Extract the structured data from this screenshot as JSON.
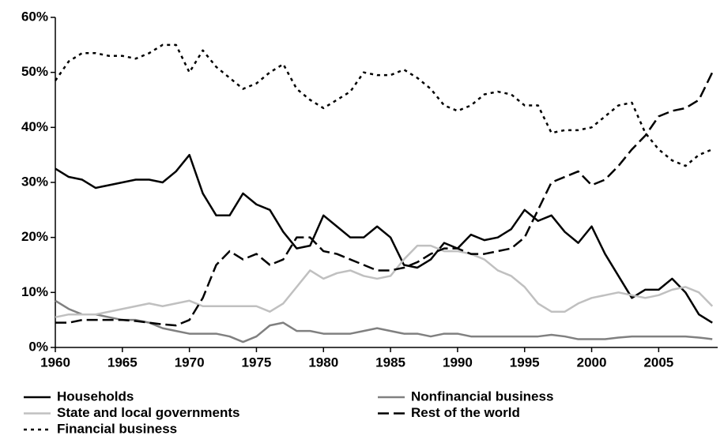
{
  "chart_data": {
    "type": "line",
    "x": [
      1960,
      1961,
      1962,
      1963,
      1964,
      1965,
      1966,
      1967,
      1968,
      1969,
      1970,
      1971,
      1972,
      1973,
      1974,
      1975,
      1976,
      1977,
      1978,
      1979,
      1980,
      1981,
      1982,
      1983,
      1984,
      1985,
      1986,
      1987,
      1988,
      1989,
      1990,
      1991,
      1992,
      1993,
      1994,
      1995,
      1996,
      1997,
      1998,
      1999,
      2000,
      2001,
      2002,
      2003,
      2004,
      2005,
      2006,
      2007,
      2008,
      2009
    ],
    "xlim": [
      1960,
      2009.4
    ],
    "xticks": [
      1960,
      1965,
      1970,
      1975,
      1980,
      1985,
      1990,
      1995,
      2000,
      2005
    ],
    "ylim": [
      0,
      60
    ],
    "yticks": [
      {
        "value": 0,
        "label": "0%"
      },
      {
        "value": 10,
        "label": "10%"
      },
      {
        "value": 20,
        "label": "20%"
      },
      {
        "value": 30,
        "label": "30%"
      },
      {
        "value": 40,
        "label": "40%"
      },
      {
        "value": 50,
        "label": "50%"
      },
      {
        "value": 60,
        "label": "60%"
      }
    ],
    "series": [
      {
        "name": "Households",
        "color": "#000000",
        "dash": "solid",
        "values": [
          32.5,
          31,
          30.5,
          29,
          29.5,
          30,
          30.5,
          30.5,
          30,
          32,
          35,
          28,
          24,
          24,
          28,
          26,
          25,
          21,
          18,
          18.5,
          24,
          22,
          20,
          20,
          22,
          20,
          15,
          14.5,
          16,
          19,
          18,
          20.5,
          19.5,
          20,
          21.5,
          25,
          23,
          24,
          21,
          19,
          22,
          17,
          13,
          9,
          10.5,
          10.5,
          12.5,
          10,
          6,
          4.5
        ]
      },
      {
        "name": "Nonfinancial business",
        "color": "#808080",
        "dash": "solid",
        "values": [
          8.5,
          7,
          6,
          6,
          5.5,
          5,
          5,
          4.5,
          3.5,
          3,
          2.5,
          2.5,
          2.5,
          2,
          1,
          2,
          4,
          4.5,
          3,
          3,
          2.5,
          2.5,
          2.5,
          3,
          3.5,
          3,
          2.5,
          2.5,
          2,
          2.5,
          2.5,
          2,
          2,
          2,
          2,
          2,
          2,
          2.3,
          2,
          1.5,
          1.5,
          1.5,
          1.8,
          2,
          2,
          2,
          2,
          2,
          1.8,
          1.5
        ]
      },
      {
        "name": "State and local governments",
        "color": "#c0c0c0",
        "dash": "solid",
        "values": [
          5.5,
          6,
          6,
          6,
          6.5,
          7,
          7.5,
          8,
          7.5,
          8,
          8.5,
          7.5,
          7.5,
          7.5,
          7.5,
          7.5,
          6.5,
          8,
          11,
          14,
          12.5,
          13.5,
          14,
          13,
          12.5,
          13,
          16,
          18.5,
          18.5,
          17.5,
          17.5,
          17,
          16,
          14,
          13,
          11,
          8,
          6.5,
          6.5,
          8,
          9,
          9.5,
          10,
          9.5,
          9,
          9.5,
          10.5,
          11,
          10,
          7.5
        ]
      },
      {
        "name": "Rest of the world",
        "color": "#000000",
        "dash": "dashed",
        "values": [
          4.5,
          4.5,
          5,
          5,
          5,
          5,
          4.8,
          4.5,
          4.2,
          4,
          5,
          9,
          15,
          17.5,
          16,
          17,
          15,
          16,
          20,
          20,
          17.5,
          17,
          16,
          15,
          14,
          14,
          14.5,
          15.5,
          17,
          18,
          18,
          17,
          17,
          17.5,
          18,
          20,
          25,
          30,
          31,
          32,
          29.5,
          30.5,
          33,
          36,
          38.5,
          42,
          43,
          43.5,
          45,
          50
        ]
      },
      {
        "name": "Financial business",
        "color": "#000000",
        "dash": "dotted",
        "values": [
          48.5,
          52,
          53.5,
          53.5,
          53,
          53,
          52.5,
          53.5,
          55,
          55,
          50,
          54,
          51,
          49,
          47,
          48,
          50,
          51.5,
          47,
          45,
          43.5,
          45,
          46.5,
          50,
          49.5,
          49.5,
          50.5,
          49,
          47,
          44,
          43,
          44,
          46,
          46.5,
          46,
          44,
          44,
          39,
          39.5,
          39.5,
          40,
          42,
          44,
          44.5,
          39,
          36,
          34,
          33,
          35,
          36
        ]
      }
    ]
  }
}
